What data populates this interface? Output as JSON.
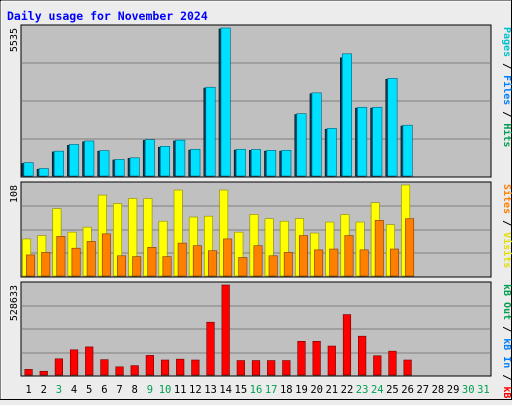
{
  "chart_data": {
    "type": "bar",
    "title": "Daily usage for November 2024",
    "categories": [
      "1",
      "2",
      "3",
      "4",
      "5",
      "6",
      "7",
      "8",
      "9",
      "10",
      "11",
      "12",
      "13",
      "14",
      "15",
      "16",
      "17",
      "18",
      "19",
      "20",
      "21",
      "22",
      "23",
      "24",
      "25",
      "26",
      "27",
      "28",
      "29",
      "30",
      "31"
    ],
    "weekend_days": [
      "3",
      "9",
      "10",
      "16",
      "17",
      "23",
      "24",
      "30",
      "31"
    ],
    "panels": [
      {
        "id": "hits",
        "ylabel": [
          "Hits",
          "Files",
          "Pages"
        ],
        "ymax_label": "5535",
        "ylim": [
          0,
          5535
        ],
        "series": [
          {
            "name": "Hits",
            "color": "#00e0ff",
            "values": [
              500,
              280,
              930,
              1180,
              1310,
              950,
              620,
              680,
              1360,
              1110,
              1340,
              1000,
              3320,
              5535,
              1000,
              990,
              960,
              960,
              2330,
              3110,
              1780,
              4570,
              2570,
              2570,
              3650,
              1900,
              0,
              0,
              0,
              0,
              0
            ]
          },
          {
            "name": "Files",
            "color": "#0080ff",
            "values": [
              470,
              250,
              900,
              1150,
              1280,
              930,
              600,
              660,
              1330,
              1080,
              1310,
              970,
              3290,
              5500,
              970,
              960,
              930,
              930,
              2300,
              3080,
              1750,
              4420,
              2540,
              2540,
              3620,
              1870,
              0,
              0,
              0,
              0,
              0
            ]
          },
          {
            "name": "Pages",
            "color": "#00c0d0",
            "values": [
              0,
              0,
              0,
              0,
              0,
              0,
              0,
              0,
              0,
              0,
              0,
              0,
              0,
              0,
              0,
              0,
              0,
              0,
              0,
              0,
              0,
              0,
              0,
              0,
              0,
              0,
              0,
              0,
              0,
              0,
              0
            ]
          }
        ]
      },
      {
        "id": "visits",
        "ylabel": [
          "Visits",
          "Sites"
        ],
        "ymax_label": "108",
        "ylim": [
          0,
          108
        ],
        "series": [
          {
            "name": "Visits",
            "color": "#ffff00",
            "values": [
              44,
              48,
              80,
              52,
              58,
              96,
              86,
              92,
              92,
              65,
              102,
              70,
              71,
              102,
              52,
              73,
              68,
              65,
              68,
              51,
              64,
              73,
              64,
              87,
              61,
              108,
              0,
              0,
              0,
              0,
              0
            ]
          },
          {
            "name": "Sites",
            "color": "#ff8000",
            "values": [
              25,
              28,
              47,
              33,
              41,
              50,
              24,
              23,
              34,
              23,
              39,
              36,
              30,
              44,
              22,
              36,
              24,
              28,
              48,
              31,
              32,
              48,
              31,
              66,
              32,
              68,
              0,
              0,
              0,
              0,
              0
            ]
          }
        ]
      },
      {
        "id": "kbytes",
        "ylabel": [
          "kB F",
          "kB In",
          "kB Out"
        ],
        "ymax_label": "528633",
        "ylim": [
          0,
          528633
        ],
        "series": [
          {
            "name": "kB F",
            "color": "#ff0000",
            "values": [
              33000,
              22000,
              95000,
              148000,
              165000,
              90000,
              48000,
              55000,
              115000,
              88000,
              93000,
              88000,
              310000,
              528633,
              85000,
              85000,
              85000,
              85000,
              198000,
              198000,
              170000,
              355000,
              228000,
              113000,
              140000,
              88000,
              0,
              0,
              0,
              0,
              0
            ]
          }
        ]
      }
    ]
  },
  "colors": {
    "background": "#ececec",
    "plot_bg": "#c0c0c0",
    "title": "#0000ff",
    "weekday_label": "#000000",
    "weekend_label": "#00a050",
    "label_files": "#0080ff",
    "label_hits": "#00a050",
    "label_visits": "#e0e000",
    "label_sites": "#ff8000",
    "label_kb_out": "#00a050",
    "label_kb_in": "#0080ff",
    "label_kb_f": "#ff0000"
  }
}
